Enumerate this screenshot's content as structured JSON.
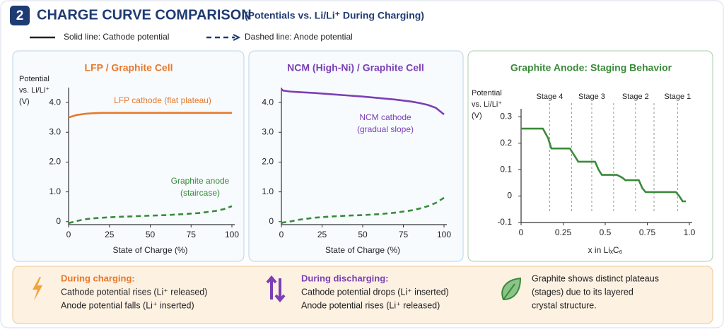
{
  "header": {
    "number": "2",
    "title": "CHARGE CURVE COMPARISON",
    "subtitle": "(Potentials vs. Li/Li⁺ During Charging)"
  },
  "legend": {
    "solid": "Solid line: Cathode potential",
    "dashed": "Dashed line: Anode potential"
  },
  "chart_data": [
    {
      "type": "line",
      "title": "LFP / Graphite Cell",
      "title_color": "#e8782a",
      "ylabel": [
        "Potential",
        "vs. Li/Li⁺",
        "(V)"
      ],
      "xlabel": "State of Charge (%)",
      "xlim": [
        0,
        100
      ],
      "xticks": [
        0,
        25,
        50,
        75,
        100
      ],
      "ylim": [
        -0.1,
        4.5
      ],
      "yticks": [
        0,
        {
          "value": 1,
          "label": "1.0"
        },
        {
          "value": 2,
          "label": "2.0"
        },
        {
          "value": 3,
          "label": "3.0"
        },
        {
          "value": 4,
          "label": "4.0"
        }
      ],
      "x": [
        0,
        5,
        10,
        15,
        20,
        30,
        40,
        50,
        60,
        70,
        80,
        90,
        95,
        100
      ],
      "series": [
        {
          "color": "#e8782a",
          "style": "solid",
          "values": [
            3.5,
            3.58,
            3.62,
            3.64,
            3.65,
            3.65,
            3.65,
            3.65,
            3.65,
            3.65,
            3.65,
            3.65,
            3.65,
            3.65
          ]
        },
        {
          "color": "#3a8a3a",
          "style": "dashed",
          "values": [
            -0.05,
            0.02,
            0.08,
            0.11,
            0.13,
            0.16,
            0.18,
            0.2,
            0.22,
            0.25,
            0.29,
            0.36,
            0.42,
            0.52
          ]
        }
      ],
      "annotations": [
        [
          "LFP cathode (flat plateau)"
        ],
        [
          "Graphite anode",
          "(staircase)"
        ]
      ]
    },
    {
      "type": "line",
      "title": "NCM (High-Ni) / Graphite Cell",
      "title_color": "#7b3fb5",
      "xlabel": "State of Charge (%)",
      "xlim": [
        0,
        100
      ],
      "xticks": [
        0,
        25,
        50,
        75,
        100
      ],
      "ylim": [
        -0.1,
        4.5
      ],
      "yticks": [
        0,
        {
          "value": 1,
          "label": "1.0"
        },
        {
          "value": 2,
          "label": "2.0"
        },
        {
          "value": 3,
          "label": "3.0"
        },
        {
          "value": 4,
          "label": "4.0"
        }
      ],
      "x": [
        0,
        1,
        5,
        10,
        20,
        30,
        40,
        50,
        60,
        70,
        80,
        85,
        90,
        95,
        100
      ],
      "series": [
        {
          "color": "#7b3fb5",
          "style": "solid",
          "values": [
            4.45,
            4.4,
            4.37,
            4.35,
            4.32,
            4.28,
            4.24,
            4.2,
            4.15,
            4.1,
            4.03,
            3.98,
            3.92,
            3.82,
            3.6
          ]
        },
        {
          "color": "#3a8a3a",
          "style": "dashed",
          "values": [
            -0.05,
            -0.03,
            0.0,
            0.06,
            0.13,
            0.17,
            0.2,
            0.22,
            0.25,
            0.3,
            0.38,
            0.44,
            0.52,
            0.63,
            0.8
          ]
        }
      ],
      "annotations": [
        [
          "NCM cathode",
          "(gradual slope)"
        ],
        null
      ]
    },
    {
      "type": "line",
      "title": "Graphite Anode: Staging Behavior",
      "title_color": "#3a8a3a",
      "ylabel": [
        "Potential",
        "vs. Li/Li⁺",
        "(V)"
      ],
      "xlabel": "x in LiₓC₆",
      "xlim": [
        0,
        1
      ],
      "xticks": [
        0,
        0.25,
        0.5,
        0.75,
        {
          "value": 1,
          "label": "1.0"
        }
      ],
      "ylim": [
        -0.1,
        0.33
      ],
      "yticks": [
        -0.1,
        0,
        0.1,
        0.2,
        0.3
      ],
      "x": [
        0,
        0.13,
        0.16,
        0.18,
        0.29,
        0.32,
        0.34,
        0.44,
        0.46,
        0.48,
        0.57,
        0.6,
        0.62,
        0.7,
        0.72,
        0.74,
        0.92,
        0.94,
        0.96,
        0.98
      ],
      "series": [
        {
          "color": "#3a8a3a",
          "style": "solid",
          "values": [
            0.255,
            0.255,
            0.22,
            0.18,
            0.18,
            0.15,
            0.13,
            0.13,
            0.1,
            0.08,
            0.08,
            0.07,
            0.06,
            0.06,
            0.03,
            0.015,
            0.015,
            0.0,
            -0.02,
            -0.02
          ]
        }
      ],
      "stage_boundaries": [
        0.17,
        0.3,
        0.42,
        0.55,
        0.68,
        0.79,
        0.93
      ],
      "stages": [
        "Stage 4",
        "Stage 3",
        "Stage 2",
        "Stage 1"
      ]
    }
  ],
  "notes": [
    {
      "title": "During charging:",
      "lines": [
        "Cathode potential rises (Li⁺ released)",
        "Anode potential falls (Li⁺ inserted)"
      ]
    },
    {
      "title": "During discharging:",
      "lines": [
        "Cathode potential drops (Li⁺ inserted)",
        "Anode potential rises (Li⁺ released)"
      ]
    },
    {
      "lines": [
        "Graphite shows distinct plateaus",
        "(stages) due to its layered",
        "crystal structure."
      ]
    }
  ]
}
